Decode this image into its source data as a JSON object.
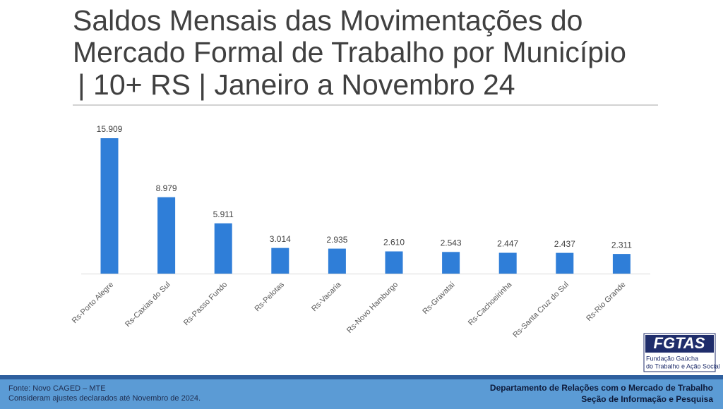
{
  "chart_data": {
    "type": "bar",
    "title": [
      "Saldos Mensais das Movimentações do",
      "Mercado Formal de Trabalho por Município",
      "| 10+ RS | Janeiro a Novembro 24"
    ],
    "categories": [
      "Rs-Porto Alegre",
      "Rs-Caxias do Sul",
      "Rs-Passo Fundo",
      "Rs-Pelotas",
      "Rs-Vacaria",
      "Rs-Novo Hamburgo",
      "Rs-Gravataí",
      "Rs-Cachoeirinha",
      "Rs-Santa Cruz do Sul",
      "Rs-Rio Grande"
    ],
    "values": [
      15909,
      8979,
      5911,
      3014,
      2935,
      2610,
      2543,
      2447,
      2437,
      2311
    ],
    "value_labels": [
      "15.909",
      "8.979",
      "5.911",
      "3.014",
      "2.935",
      "2.610",
      "2.543",
      "2.447",
      "2.437",
      "2.311"
    ],
    "color": "#2f7ed8"
  },
  "footer": {
    "source": "Fonte: Novo CAGED – MTE",
    "note": "Consideram ajustes declarados até Novembro de 2024.",
    "department": "Departamento de Relações com o Mercado de Trabalho",
    "section": "Seção de Informação e Pesquisa"
  },
  "logo": {
    "name": "FGTAS",
    "subtitle": [
      "Fundação Gaúcha",
      "do Trabalho e Ação Social"
    ]
  }
}
